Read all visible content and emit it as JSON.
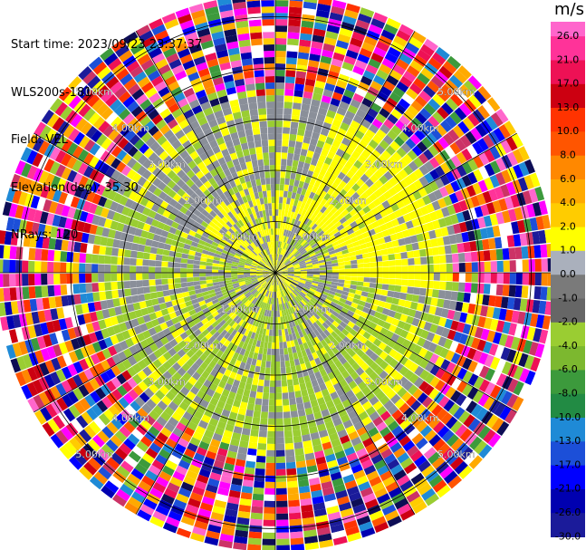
{
  "header": {
    "start_time": "Start time: 2023/09/23 23:37:37",
    "instrument": "WLS200s-181",
    "field": "Field: VEL",
    "elevation": "Elevation(deg): 35.30",
    "nrays": "NRays: 120"
  },
  "chart_data": {
    "type": "heatmap",
    "subtype": "radar-ppi",
    "field": "VEL",
    "units": "m/s",
    "n_rays": 120,
    "elevation_deg": 35.3,
    "range_rings_km": [
      1.0,
      2.0,
      3.0,
      4.0,
      5.0
    ],
    "range_ring_labels": [
      "1.00km",
      "2.00km",
      "3.00km",
      "4.00km",
      "5.00km"
    ],
    "max_range_km": 5.45,
    "spoke_angles_deg": [
      0,
      30,
      60,
      90,
      120,
      150,
      180,
      210,
      240,
      270,
      300,
      330
    ],
    "colorbar": {
      "title": "m/s",
      "ticks": [
        "26.0",
        "21.0",
        "17.0",
        "13.0",
        "10.0",
        "8.0",
        "6.0",
        "4.0",
        "2.0",
        "1.0",
        "0.0",
        "-1.0",
        "-2.0",
        "-4.0",
        "-6.0",
        "-8.0",
        "-10.0",
        "-13.0",
        "-17.0",
        "-21.0",
        "-26.0",
        "-30.0"
      ],
      "colors": [
        "#ff66cc",
        "#ff3399",
        "#ee1155",
        "#cc0011",
        "#ff3300",
        "#ff5500",
        "#ff8800",
        "#ffaa00",
        "#ffcc00",
        "#ffff00",
        "#aab0bc",
        "#7a7a7a",
        "#666666",
        "#9acd32",
        "#7cb82f",
        "#3c9a3c",
        "#228b44",
        "#1f8ad6",
        "#1c4fd8",
        "#0000ff",
        "#0000b0",
        "#1b1b9a",
        "#0d0d55",
        "#000022"
      ]
    },
    "regions": {
      "inner_km": 3.6,
      "noise_color_note": "multicolor speckle beyond ~3.6 km"
    }
  }
}
